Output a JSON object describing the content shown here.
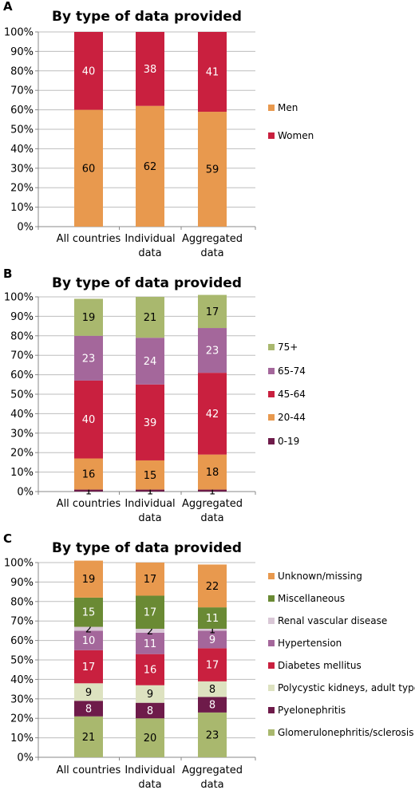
{
  "chart_data": [
    {
      "panel": "A",
      "type": "bar",
      "stacked": true,
      "title": "By type of data provided",
      "categories": [
        "All countries",
        "Individual data",
        "Aggregated data"
      ],
      "ylim": [
        0,
        100
      ],
      "yticks": [
        "0%",
        "10%",
        "20%",
        "30%",
        "40%",
        "50%",
        "60%",
        "70%",
        "80%",
        "90%",
        "100%"
      ],
      "legend_position": "right",
      "series": [
        {
          "name": "Men",
          "color": "#E8994E",
          "label_color": "#000000",
          "values": [
            60,
            62,
            59
          ]
        },
        {
          "name": "Women",
          "color": "#C9203F",
          "label_color": "#ffffff",
          "values": [
            40,
            38,
            41
          ]
        }
      ]
    },
    {
      "panel": "B",
      "type": "bar",
      "stacked": true,
      "title": "By type of data provided",
      "categories": [
        "All countries",
        "Individual data",
        "Aggregated data"
      ],
      "ylim": [
        0,
        100
      ],
      "yticks": [
        "0%",
        "10%",
        "20%",
        "30%",
        "40%",
        "50%",
        "60%",
        "70%",
        "80%",
        "90%",
        "100%"
      ],
      "legend_position": "right",
      "series": [
        {
          "name": "0-19",
          "color": "#6E1B4A",
          "label_color": "#000000",
          "values": [
            1,
            1,
            1
          ]
        },
        {
          "name": "20-44",
          "color": "#E8994E",
          "label_color": "#000000",
          "values": [
            16,
            15,
            18
          ]
        },
        {
          "name": "45-64",
          "color": "#C9203F",
          "label_color": "#ffffff",
          "values": [
            40,
            39,
            42
          ]
        },
        {
          "name": "65-74",
          "color": "#A4679B",
          "label_color": "#ffffff",
          "values": [
            23,
            24,
            23
          ]
        },
        {
          "name": "75+",
          "color": "#A9B86E",
          "label_color": "#000000",
          "values": [
            19,
            21,
            17
          ]
        }
      ]
    },
    {
      "panel": "C",
      "type": "bar",
      "stacked": true,
      "title": "By type of data provided",
      "categories": [
        "All countries",
        "Individual data",
        "Aggregated data"
      ],
      "ylim": [
        0,
        100
      ],
      "yticks": [
        "0%",
        "10%",
        "20%",
        "30%",
        "40%",
        "50%",
        "60%",
        "70%",
        "80%",
        "90%",
        "100%"
      ],
      "legend_position": "right",
      "series": [
        {
          "name": "Glomerulonephritis/sclerosis",
          "color": "#A9B86E",
          "label_color": "#000000",
          "values": [
            21,
            20,
            23
          ]
        },
        {
          "name": "Pyelonephritis",
          "color": "#6E1B4A",
          "label_color": "#ffffff",
          "values": [
            8,
            8,
            8
          ]
        },
        {
          "name": "Polycystic kidneys, adult type",
          "color": "#DDE2C0",
          "label_color": "#000000",
          "values": [
            9,
            9,
            8
          ]
        },
        {
          "name": "Diabetes mellitus",
          "color": "#C9203F",
          "label_color": "#ffffff",
          "values": [
            17,
            16,
            17
          ]
        },
        {
          "name": "Hypertension",
          "color": "#A4679B",
          "label_color": "#ffffff",
          "values": [
            10,
            11,
            9
          ]
        },
        {
          "name": "Renal vascular disease",
          "color": "#D9C7D6",
          "label_color": "#000000",
          "values": [
            2,
            2,
            1
          ]
        },
        {
          "name": "Miscellaneous",
          "color": "#6A8A34",
          "label_color": "#ffffff",
          "values": [
            15,
            17,
            11
          ]
        },
        {
          "name": "Unknown/missing",
          "color": "#E8994E",
          "label_color": "#000000",
          "values": [
            19,
            17,
            22
          ]
        }
      ]
    }
  ]
}
